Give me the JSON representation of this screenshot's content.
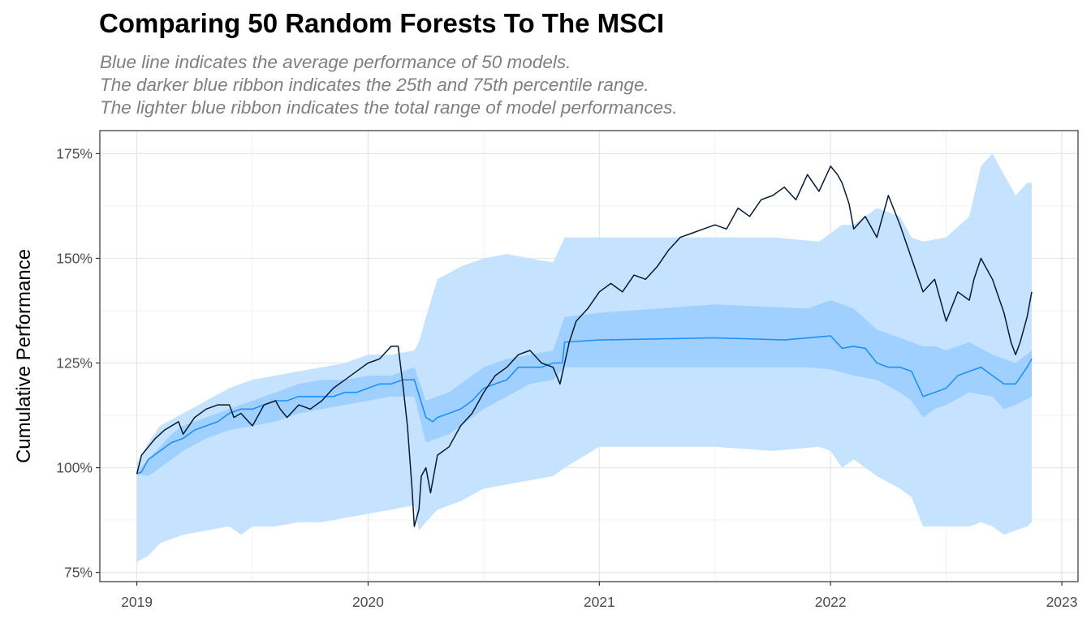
{
  "chart_data": {
    "type": "line",
    "title": "Comparing 50 Random Forests To The MSCI",
    "subtitle": [
      "Blue line indicates the average performance of 50 models.",
      "The darker blue ribbon indicates the 25th and 75th percentile range.",
      "The lighter blue ribbon indicates the total range of model performances."
    ],
    "xlabel": "",
    "ylabel": "Cumulative Performance",
    "xlim": [
      2018.84,
      2023.07
    ],
    "ylim": [
      0.728,
      1.805
    ],
    "x_ticks": [
      2019,
      2020,
      2021,
      2022,
      2023
    ],
    "x_tick_labels": [
      "2019",
      "2020",
      "2021",
      "2022",
      "2023"
    ],
    "y_ticks": [
      0.75,
      1.0,
      1.25,
      1.5,
      1.75
    ],
    "y_tick_labels": [
      "75%",
      "100%",
      "125%",
      "150%",
      "175%"
    ],
    "grid": true,
    "colors": {
      "msci": "#061a33",
      "mean": "#1e90ff",
      "iqr_ribbon": "#9fd0ff",
      "range_ribbon": "#c5e2ff"
    },
    "series": [
      {
        "x": [
          2019.0,
          2019.02,
          2019.05,
          2019.08,
          2019.12,
          2019.15,
          2019.18,
          2019.2,
          2019.25,
          2019.3,
          2019.35,
          2019.4,
          2019.42,
          2019.45,
          2019.5,
          2019.55,
          2019.6,
          2019.62,
          2019.65,
          2019.7,
          2019.75,
          2019.8,
          2019.85,
          2019.9,
          2019.95,
          2020.0,
          2020.05,
          2020.1,
          2020.13,
          2020.15,
          2020.17,
          2020.19,
          2020.2,
          2020.22,
          2020.23,
          2020.25,
          2020.27,
          2020.3,
          2020.35,
          2020.4,
          2020.45,
          2020.5,
          2020.55,
          2020.6,
          2020.65,
          2020.7,
          2020.75,
          2020.8,
          2020.83,
          2020.87,
          2020.9,
          2020.95,
          2021.0,
          2021.05,
          2021.1,
          2021.15,
          2021.2,
          2021.25,
          2021.3,
          2021.35,
          2021.4,
          2021.45,
          2021.5,
          2021.55,
          2021.6,
          2021.65,
          2021.7,
          2021.75,
          2021.8,
          2021.85,
          2021.9,
          2021.95,
          2022.0,
          2022.03,
          2022.05,
          2022.08,
          2022.1,
          2022.15,
          2022.2,
          2022.25,
          2022.3,
          2022.35,
          2022.4,
          2022.45,
          2022.5,
          2022.55,
          2022.6,
          2022.62,
          2022.65,
          2022.7,
          2022.75,
          2022.78,
          2022.8,
          2022.82,
          2022.85,
          2022.87
        ],
        "values": [
          0.985,
          1.03,
          1.05,
          1.07,
          1.09,
          1.1,
          1.11,
          1.08,
          1.12,
          1.14,
          1.15,
          1.15,
          1.12,
          1.13,
          1.1,
          1.15,
          1.16,
          1.14,
          1.12,
          1.15,
          1.14,
          1.16,
          1.19,
          1.21,
          1.23,
          1.25,
          1.26,
          1.29,
          1.29,
          1.2,
          1.1,
          0.95,
          0.86,
          0.9,
          0.98,
          1.0,
          0.94,
          1.03,
          1.05,
          1.1,
          1.13,
          1.18,
          1.22,
          1.24,
          1.27,
          1.28,
          1.25,
          1.24,
          1.2,
          1.3,
          1.35,
          1.38,
          1.42,
          1.44,
          1.42,
          1.46,
          1.45,
          1.48,
          1.52,
          1.55,
          1.56,
          1.57,
          1.58,
          1.57,
          1.62,
          1.6,
          1.64,
          1.65,
          1.67,
          1.64,
          1.7,
          1.66,
          1.72,
          1.7,
          1.68,
          1.63,
          1.57,
          1.6,
          1.55,
          1.65,
          1.58,
          1.5,
          1.42,
          1.45,
          1.35,
          1.42,
          1.4,
          1.45,
          1.5,
          1.45,
          1.37,
          1.3,
          1.27,
          1.3,
          1.36,
          1.42
        ]
      },
      {
        "x": [
          2019.0,
          2019.02,
          2019.05,
          2019.1,
          2019.15,
          2019.2,
          2019.25,
          2019.3,
          2019.35,
          2019.4,
          2019.45,
          2019.5,
          2019.55,
          2019.6,
          2019.65,
          2019.7,
          2019.75,
          2019.8,
          2019.85,
          2019.9,
          2019.95,
          2020.0,
          2020.05,
          2020.1,
          2020.15,
          2020.2,
          2020.25,
          2020.28,
          2020.3,
          2020.35,
          2020.4,
          2020.45,
          2020.5,
          2020.55,
          2020.6,
          2020.65,
          2020.7,
          2020.75,
          2020.8,
          2020.84,
          2020.85,
          2021.0,
          2021.5,
          2021.8,
          2022.0,
          2022.05,
          2022.1,
          2022.15,
          2022.2,
          2022.25,
          2022.3,
          2022.35,
          2022.4,
          2022.45,
          2022.5,
          2022.55,
          2022.6,
          2022.65,
          2022.7,
          2022.75,
          2022.8,
          2022.85,
          2022.87
        ],
        "values": [
          0.985,
          0.99,
          1.02,
          1.04,
          1.06,
          1.07,
          1.09,
          1.1,
          1.11,
          1.13,
          1.14,
          1.14,
          1.15,
          1.16,
          1.16,
          1.17,
          1.17,
          1.17,
          1.17,
          1.18,
          1.18,
          1.19,
          1.2,
          1.2,
          1.21,
          1.21,
          1.12,
          1.11,
          1.12,
          1.13,
          1.14,
          1.16,
          1.19,
          1.2,
          1.21,
          1.24,
          1.24,
          1.24,
          1.25,
          1.25,
          1.3,
          1.305,
          1.31,
          1.305,
          1.315,
          1.285,
          1.29,
          1.285,
          1.25,
          1.24,
          1.24,
          1.23,
          1.17,
          1.18,
          1.19,
          1.22,
          1.23,
          1.24,
          1.22,
          1.2,
          1.2,
          1.24,
          1.26
        ]
      }
    ],
    "ribbons": [
      {
        "x": [
          2019.0,
          2019.05,
          2019.1,
          2019.15,
          2019.2,
          2019.3,
          2019.4,
          2019.5,
          2019.6,
          2019.7,
          2019.8,
          2019.9,
          2020.0,
          2020.1,
          2020.15,
          2020.2,
          2020.25,
          2020.3,
          2020.35,
          2020.4,
          2020.45,
          2020.5,
          2020.6,
          2020.7,
          2020.8,
          2020.85,
          2021.0,
          2021.5,
          2021.9,
          2022.0,
          2022.1,
          2022.2,
          2022.3,
          2022.35,
          2022.4,
          2022.45,
          2022.5,
          2022.6,
          2022.7,
          2022.75,
          2022.8,
          2022.87
        ],
        "lo": [
          0.985,
          0.98,
          1.0,
          1.02,
          1.04,
          1.07,
          1.09,
          1.1,
          1.11,
          1.13,
          1.14,
          1.15,
          1.16,
          1.17,
          1.17,
          1.17,
          1.06,
          1.07,
          1.08,
          1.1,
          1.12,
          1.14,
          1.17,
          1.2,
          1.21,
          1.24,
          1.24,
          1.24,
          1.24,
          1.235,
          1.22,
          1.21,
          1.18,
          1.16,
          1.12,
          1.14,
          1.15,
          1.18,
          1.17,
          1.14,
          1.15,
          1.17
        ],
        "hi": [
          0.99,
          1.02,
          1.05,
          1.08,
          1.1,
          1.12,
          1.14,
          1.16,
          1.18,
          1.2,
          1.21,
          1.21,
          1.22,
          1.22,
          1.23,
          1.24,
          1.16,
          1.17,
          1.18,
          1.2,
          1.22,
          1.24,
          1.26,
          1.27,
          1.28,
          1.36,
          1.37,
          1.39,
          1.38,
          1.4,
          1.38,
          1.33,
          1.31,
          1.3,
          1.29,
          1.29,
          1.28,
          1.3,
          1.27,
          1.26,
          1.25,
          1.28
        ]
      },
      {
        "x": [
          2019.0,
          2019.05,
          2019.1,
          2019.2,
          2019.3,
          2019.4,
          2019.45,
          2019.5,
          2019.6,
          2019.7,
          2019.8,
          2019.9,
          2020.0,
          2020.1,
          2020.2,
          2020.22,
          2020.25,
          2020.3,
          2020.4,
          2020.5,
          2020.6,
          2020.7,
          2020.8,
          2020.85,
          2021.0,
          2021.5,
          2021.75,
          2021.95,
          2022.0,
          2022.05,
          2022.1,
          2022.15,
          2022.2,
          2022.3,
          2022.35,
          2022.4,
          2022.5,
          2022.6,
          2022.65,
          2022.7,
          2022.75,
          2022.8,
          2022.85,
          2022.87
        ],
        "lo": [
          0.775,
          0.79,
          0.82,
          0.84,
          0.85,
          0.86,
          0.84,
          0.86,
          0.86,
          0.87,
          0.87,
          0.88,
          0.89,
          0.9,
          0.91,
          0.85,
          0.87,
          0.9,
          0.92,
          0.95,
          0.96,
          0.97,
          0.98,
          1.0,
          1.05,
          1.05,
          1.04,
          1.05,
          1.04,
          1.0,
          1.02,
          1.0,
          0.98,
          0.95,
          0.93,
          0.86,
          0.86,
          0.86,
          0.87,
          0.86,
          0.84,
          0.85,
          0.86,
          0.87
        ],
        "hi": [
          1.01,
          1.06,
          1.1,
          1.13,
          1.16,
          1.19,
          1.2,
          1.21,
          1.22,
          1.23,
          1.24,
          1.25,
          1.27,
          1.27,
          1.28,
          1.3,
          1.36,
          1.45,
          1.48,
          1.5,
          1.51,
          1.5,
          1.49,
          1.55,
          1.55,
          1.55,
          1.55,
          1.54,
          1.56,
          1.58,
          1.58,
          1.6,
          1.62,
          1.6,
          1.55,
          1.54,
          1.55,
          1.6,
          1.72,
          1.75,
          1.7,
          1.65,
          1.68,
          1.68
        ]
      }
    ]
  }
}
